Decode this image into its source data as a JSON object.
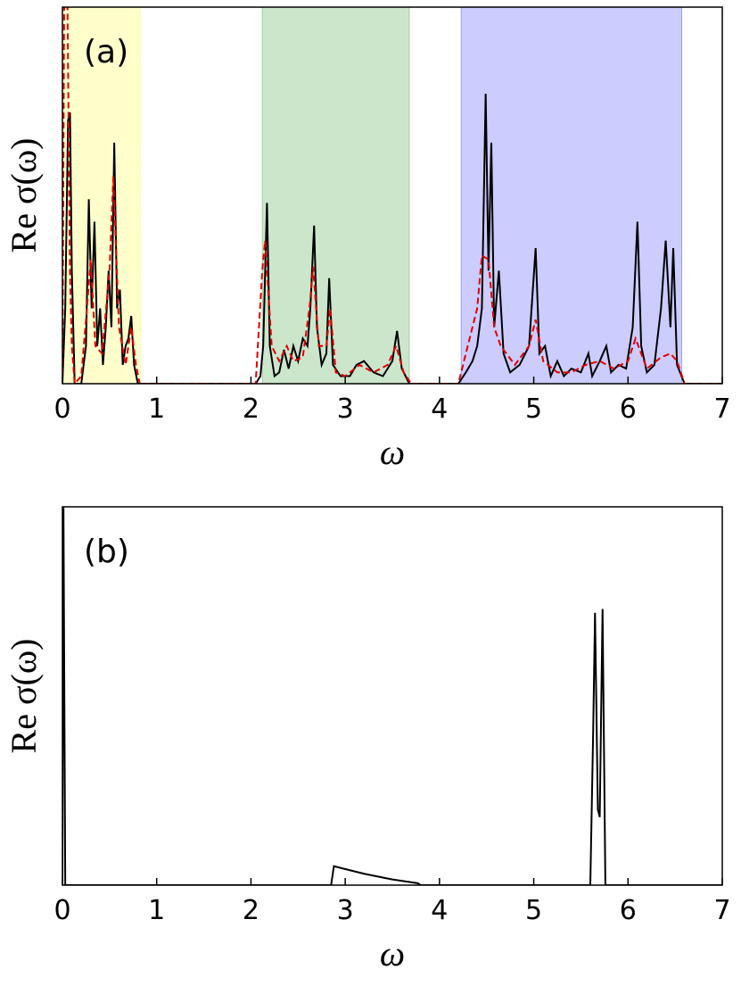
{
  "chart_data": [
    {
      "type": "line",
      "panel_label": "(a)",
      "xlabel": "ω",
      "ylabel": "Re σ(ω)",
      "xlim": [
        0,
        7
      ],
      "ylim": [
        0,
        1
      ],
      "xticks": [
        0,
        1,
        2,
        3,
        4,
        5,
        6,
        7
      ],
      "spans": [
        {
          "xmin": 0,
          "xmax": 0.83,
          "color": "#ffff00",
          "alpha": 0.2
        },
        {
          "xmin": 2.12,
          "xmax": 3.68,
          "color": "#008000",
          "alpha": 0.2
        },
        {
          "xmin": 4.23,
          "xmax": 6.57,
          "color": "#0000ff",
          "alpha": 0.2
        }
      ],
      "series": [
        {
          "color": "#000000",
          "dash": false,
          "x": [
            0,
            0.03,
            0.06,
            0.08,
            0.1,
            0.13,
            0.2,
            0.25,
            0.28,
            0.31,
            0.34,
            0.37,
            0.4,
            0.43,
            0.46,
            0.49,
            0.52,
            0.55,
            0.58,
            0.61,
            0.64,
            0.67,
            0.7,
            0.73,
            0.76,
            0.8,
            0.85,
            2.05,
            2.1,
            2.13,
            2.17,
            2.2,
            2.25,
            2.3,
            2.35,
            2.4,
            2.45,
            2.5,
            2.55,
            2.6,
            2.63,
            2.67,
            2.7,
            2.75,
            2.8,
            2.83,
            2.87,
            2.95,
            3.05,
            3.12,
            3.2,
            3.3,
            3.4,
            3.5,
            3.55,
            3.6,
            3.68,
            4.2,
            4.28,
            4.35,
            4.4,
            4.45,
            4.49,
            4.52,
            4.55,
            4.58,
            4.63,
            4.68,
            4.75,
            4.85,
            4.95,
            5.02,
            5.06,
            5.12,
            5.18,
            5.25,
            5.32,
            5.4,
            5.5,
            5.58,
            5.62,
            5.7,
            5.77,
            5.82,
            5.9,
            5.98,
            6.05,
            6.1,
            6.14,
            6.2,
            6.28,
            6.35,
            6.4,
            6.45,
            6.48,
            6.52,
            6.6,
            7
          ],
          "values": [
            0,
            0.2,
            0.7,
            0.72,
            0.3,
            0,
            0,
            0.1,
            0.49,
            0.2,
            0.43,
            0.1,
            0.2,
            0.05,
            0.15,
            0.3,
            0.15,
            0.64,
            0.2,
            0.25,
            0.05,
            0.1,
            0.12,
            0.18,
            0.05,
            0,
            0,
            0,
            0.02,
            0.1,
            0.48,
            0.1,
            0.02,
            0.03,
            0.09,
            0.04,
            0.1,
            0.06,
            0.12,
            0.1,
            0.2,
            0.42,
            0.15,
            0.05,
            0.08,
            0.28,
            0.05,
            0.02,
            0.02,
            0.05,
            0.06,
            0.03,
            0.02,
            0.06,
            0.14,
            0.04,
            0,
            0,
            0.03,
            0.06,
            0.1,
            0.2,
            0.77,
            0.3,
            0.64,
            0.15,
            0.3,
            0.08,
            0.03,
            0.05,
            0.1,
            0.36,
            0.08,
            0.1,
            0.02,
            0.06,
            0.02,
            0.04,
            0.03,
            0.08,
            0.02,
            0.06,
            0.1,
            0.03,
            0.05,
            0.04,
            0.15,
            0.43,
            0.1,
            0.03,
            0.05,
            0.2,
            0.38,
            0.15,
            0.36,
            0.05,
            0,
            0
          ]
        },
        {
          "color": "#e00000",
          "dash": true,
          "x": [
            0,
            0.02,
            0.05,
            0.08,
            0.1,
            0.13,
            0.2,
            0.26,
            0.3,
            0.35,
            0.42,
            0.5,
            0.54,
            0.6,
            0.67,
            0.73,
            0.78,
            0.82,
            2.05,
            2.12,
            2.15,
            2.22,
            2.3,
            2.38,
            2.45,
            2.55,
            2.62,
            2.66,
            2.72,
            2.8,
            2.84,
            2.9,
            3.0,
            3.15,
            3.3,
            3.45,
            3.54,
            3.62,
            3.7,
            4.2,
            4.3,
            4.4,
            4.45,
            4.52,
            4.58,
            4.65,
            4.8,
            4.95,
            5.02,
            5.1,
            5.25,
            5.4,
            5.55,
            5.7,
            5.85,
            6.0,
            6.08,
            6.2,
            6.35,
            6.45,
            6.52,
            6.6,
            7
          ],
          "values": [
            0,
            1.1,
            1.1,
            0.3,
            0.1,
            0,
            0.02,
            0.2,
            0.33,
            0.1,
            0.08,
            0.3,
            0.55,
            0.15,
            0.05,
            0.15,
            0.05,
            0,
            0,
            0.3,
            0.38,
            0.1,
            0.06,
            0.1,
            0.06,
            0.07,
            0.2,
            0.31,
            0.1,
            0.1,
            0.2,
            0.03,
            0.02,
            0.05,
            0.03,
            0.05,
            0.1,
            0.03,
            0,
            0,
            0.1,
            0.2,
            0.34,
            0.33,
            0.15,
            0.1,
            0.05,
            0.1,
            0.17,
            0.06,
            0.03,
            0.03,
            0.05,
            0.06,
            0.04,
            0.06,
            0.12,
            0.04,
            0.07,
            0.08,
            0.06,
            0,
            0
          ]
        }
      ]
    },
    {
      "type": "line",
      "panel_label": "(b)",
      "xlabel": "ω",
      "ylabel": "Re σ(ω)",
      "xlim": [
        0,
        7
      ],
      "ylim": [
        0,
        1
      ],
      "xticks": [
        0,
        1,
        2,
        3,
        4,
        5,
        6,
        7
      ],
      "spans": [],
      "series": [
        {
          "color": "#000000",
          "dash": false,
          "x": [
            0,
            0.01,
            0.03,
            2.85,
            2.88,
            3.2,
            3.5,
            3.77,
            3.8,
            5.6,
            5.63,
            5.65,
            5.68,
            5.7,
            5.73,
            5.76,
            7
          ],
          "values": [
            0,
            1.05,
            0,
            0,
            0.05,
            0.03,
            0.015,
            0.005,
            0,
            0,
            0.4,
            0.72,
            0.2,
            0.18,
            0.73,
            0,
            0
          ]
        }
      ]
    }
  ]
}
